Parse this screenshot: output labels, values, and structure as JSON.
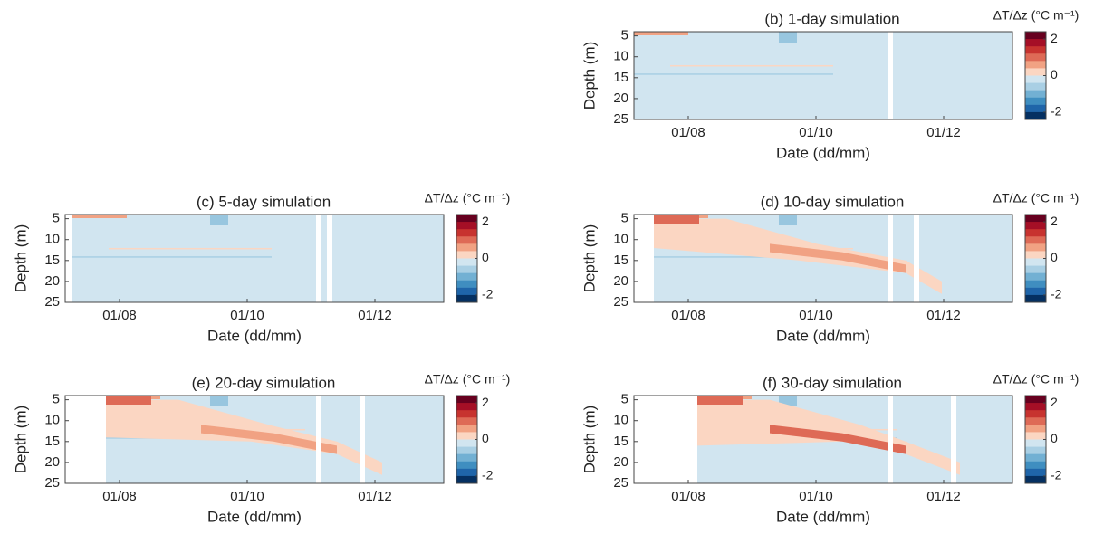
{
  "chart_data": [
    {
      "type": "heatmap",
      "title": "(b) 1-day simulation",
      "xlabel": "Date (dd/mm)",
      "ylabel": "Depth (m)",
      "xticks": [
        "01/08",
        "01/10",
        "01/12"
      ],
      "ylim": [
        4,
        25
      ],
      "yticks": [
        5,
        10,
        15,
        20,
        25
      ],
      "colorbar": {
        "label": "ΔT/Δz (°C m⁻¹)",
        "clim": [
          -2.4,
          2.4
        ],
        "ticks": [
          -2,
          0,
          2
        ]
      }
    },
    {
      "type": "heatmap",
      "title": "(c) 5-day simulation",
      "xlabel": "Date (dd/mm)",
      "ylabel": "Depth (m)",
      "xticks": [
        "01/08",
        "01/10",
        "01/12"
      ],
      "ylim": [
        4,
        25
      ],
      "yticks": [
        5,
        10,
        15,
        20,
        25
      ],
      "colorbar": {
        "label": "ΔT/Δz (°C m⁻¹)",
        "clim": [
          -2.4,
          2.4
        ],
        "ticks": [
          -2,
          0,
          2
        ]
      }
    },
    {
      "type": "heatmap",
      "title": "(d) 10-day simulation",
      "xlabel": "Date (dd/mm)",
      "ylabel": "Depth (m)",
      "xticks": [
        "01/08",
        "01/10",
        "01/12"
      ],
      "ylim": [
        4,
        25
      ],
      "yticks": [
        5,
        10,
        15,
        20,
        25
      ],
      "colorbar": {
        "label": "ΔT/Δz (°C m⁻¹)",
        "clim": [
          -2.4,
          2.4
        ],
        "ticks": [
          -2,
          0,
          2
        ]
      }
    },
    {
      "type": "heatmap",
      "title": "(e) 20-day simulation",
      "xlabel": "Date (dd/mm)",
      "ylabel": "Depth (m)",
      "xticks": [
        "01/08",
        "01/10",
        "01/12"
      ],
      "ylim": [
        4,
        25
      ],
      "yticks": [
        5,
        10,
        15,
        20,
        25
      ],
      "colorbar": {
        "label": "ΔT/Δz (°C m⁻¹)",
        "clim": [
          -2.4,
          2.4
        ],
        "ticks": [
          -2,
          0,
          2
        ]
      }
    },
    {
      "type": "heatmap",
      "title": "(f) 30-day simulation",
      "xlabel": "Date (dd/mm)",
      "ylabel": "Depth (m)",
      "xticks": [
        "01/08",
        "01/10",
        "01/12"
      ],
      "ylim": [
        4,
        25
      ],
      "yticks": [
        5,
        10,
        15,
        20,
        25
      ],
      "colorbar": {
        "label": "ΔT/Δz (°C m⁻¹)",
        "clim": [
          -2.4,
          2.4
        ],
        "ticks": [
          -2,
          0,
          2
        ]
      }
    }
  ],
  "colors": [
    "#67001f",
    "#a50f26",
    "#c7332f",
    "#de6a56",
    "#f1a283",
    "#fbd6c2",
    "#d1e5f0",
    "#a9cfe4",
    "#72b0d3",
    "#3f8ec0",
    "#1f65a9",
    "#053061"
  ]
}
